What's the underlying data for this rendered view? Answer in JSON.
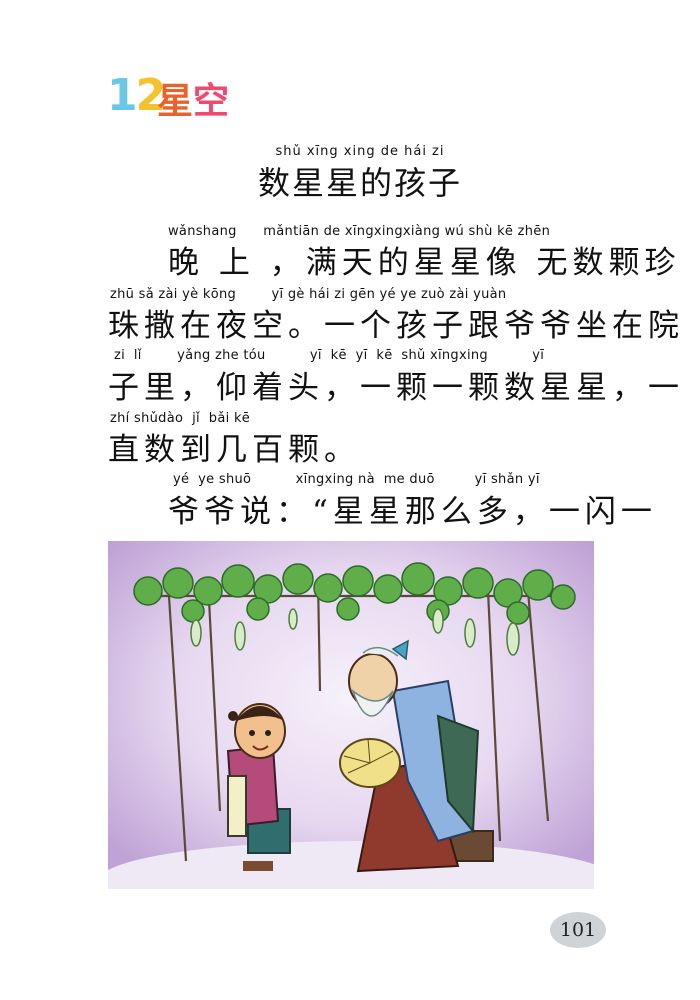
{
  "lesson": {
    "number": "12",
    "title_chars": [
      "星",
      "空"
    ]
  },
  "story": {
    "title_pinyin": "shǔ xīng xing de hái zi",
    "title": "数星星的孩子"
  },
  "lines": [
    {
      "pinyin": "wǎnshang      mǎntiān de xīngxingxiàng wú shù kē zhēn",
      "hanzi": "晚 上 ，满天的星星像 无数颗珍"
    },
    {
      "pinyin": "zhū sǎ zài yè kōng        yī gè hái zi gēn yé ye zuò zài yuàn",
      "hanzi": "珠撒在夜空。一个孩子跟爷爷坐在院"
    },
    {
      "pinyin": "zi  lǐ        yǎng zhe tóu          yī  kē  yī  kē  shǔ xīngxing          yī",
      "hanzi": "子里，仰着头，一颗一颗数星星，一"
    },
    {
      "pinyin": "zhí shǔdào  jǐ  bǎi kē",
      "hanzi": "直数到几百颗。"
    },
    {
      "pinyin": "yé  ye shuō          xīngxing nà  me duō         yī shǎn yī",
      "hanzi": "爷爷说：“星星那么多，一闪一"
    }
  ],
  "page_number": "101",
  "icons": {
    "illustration": "grandfather-and-child-under-gourd-trellis"
  }
}
